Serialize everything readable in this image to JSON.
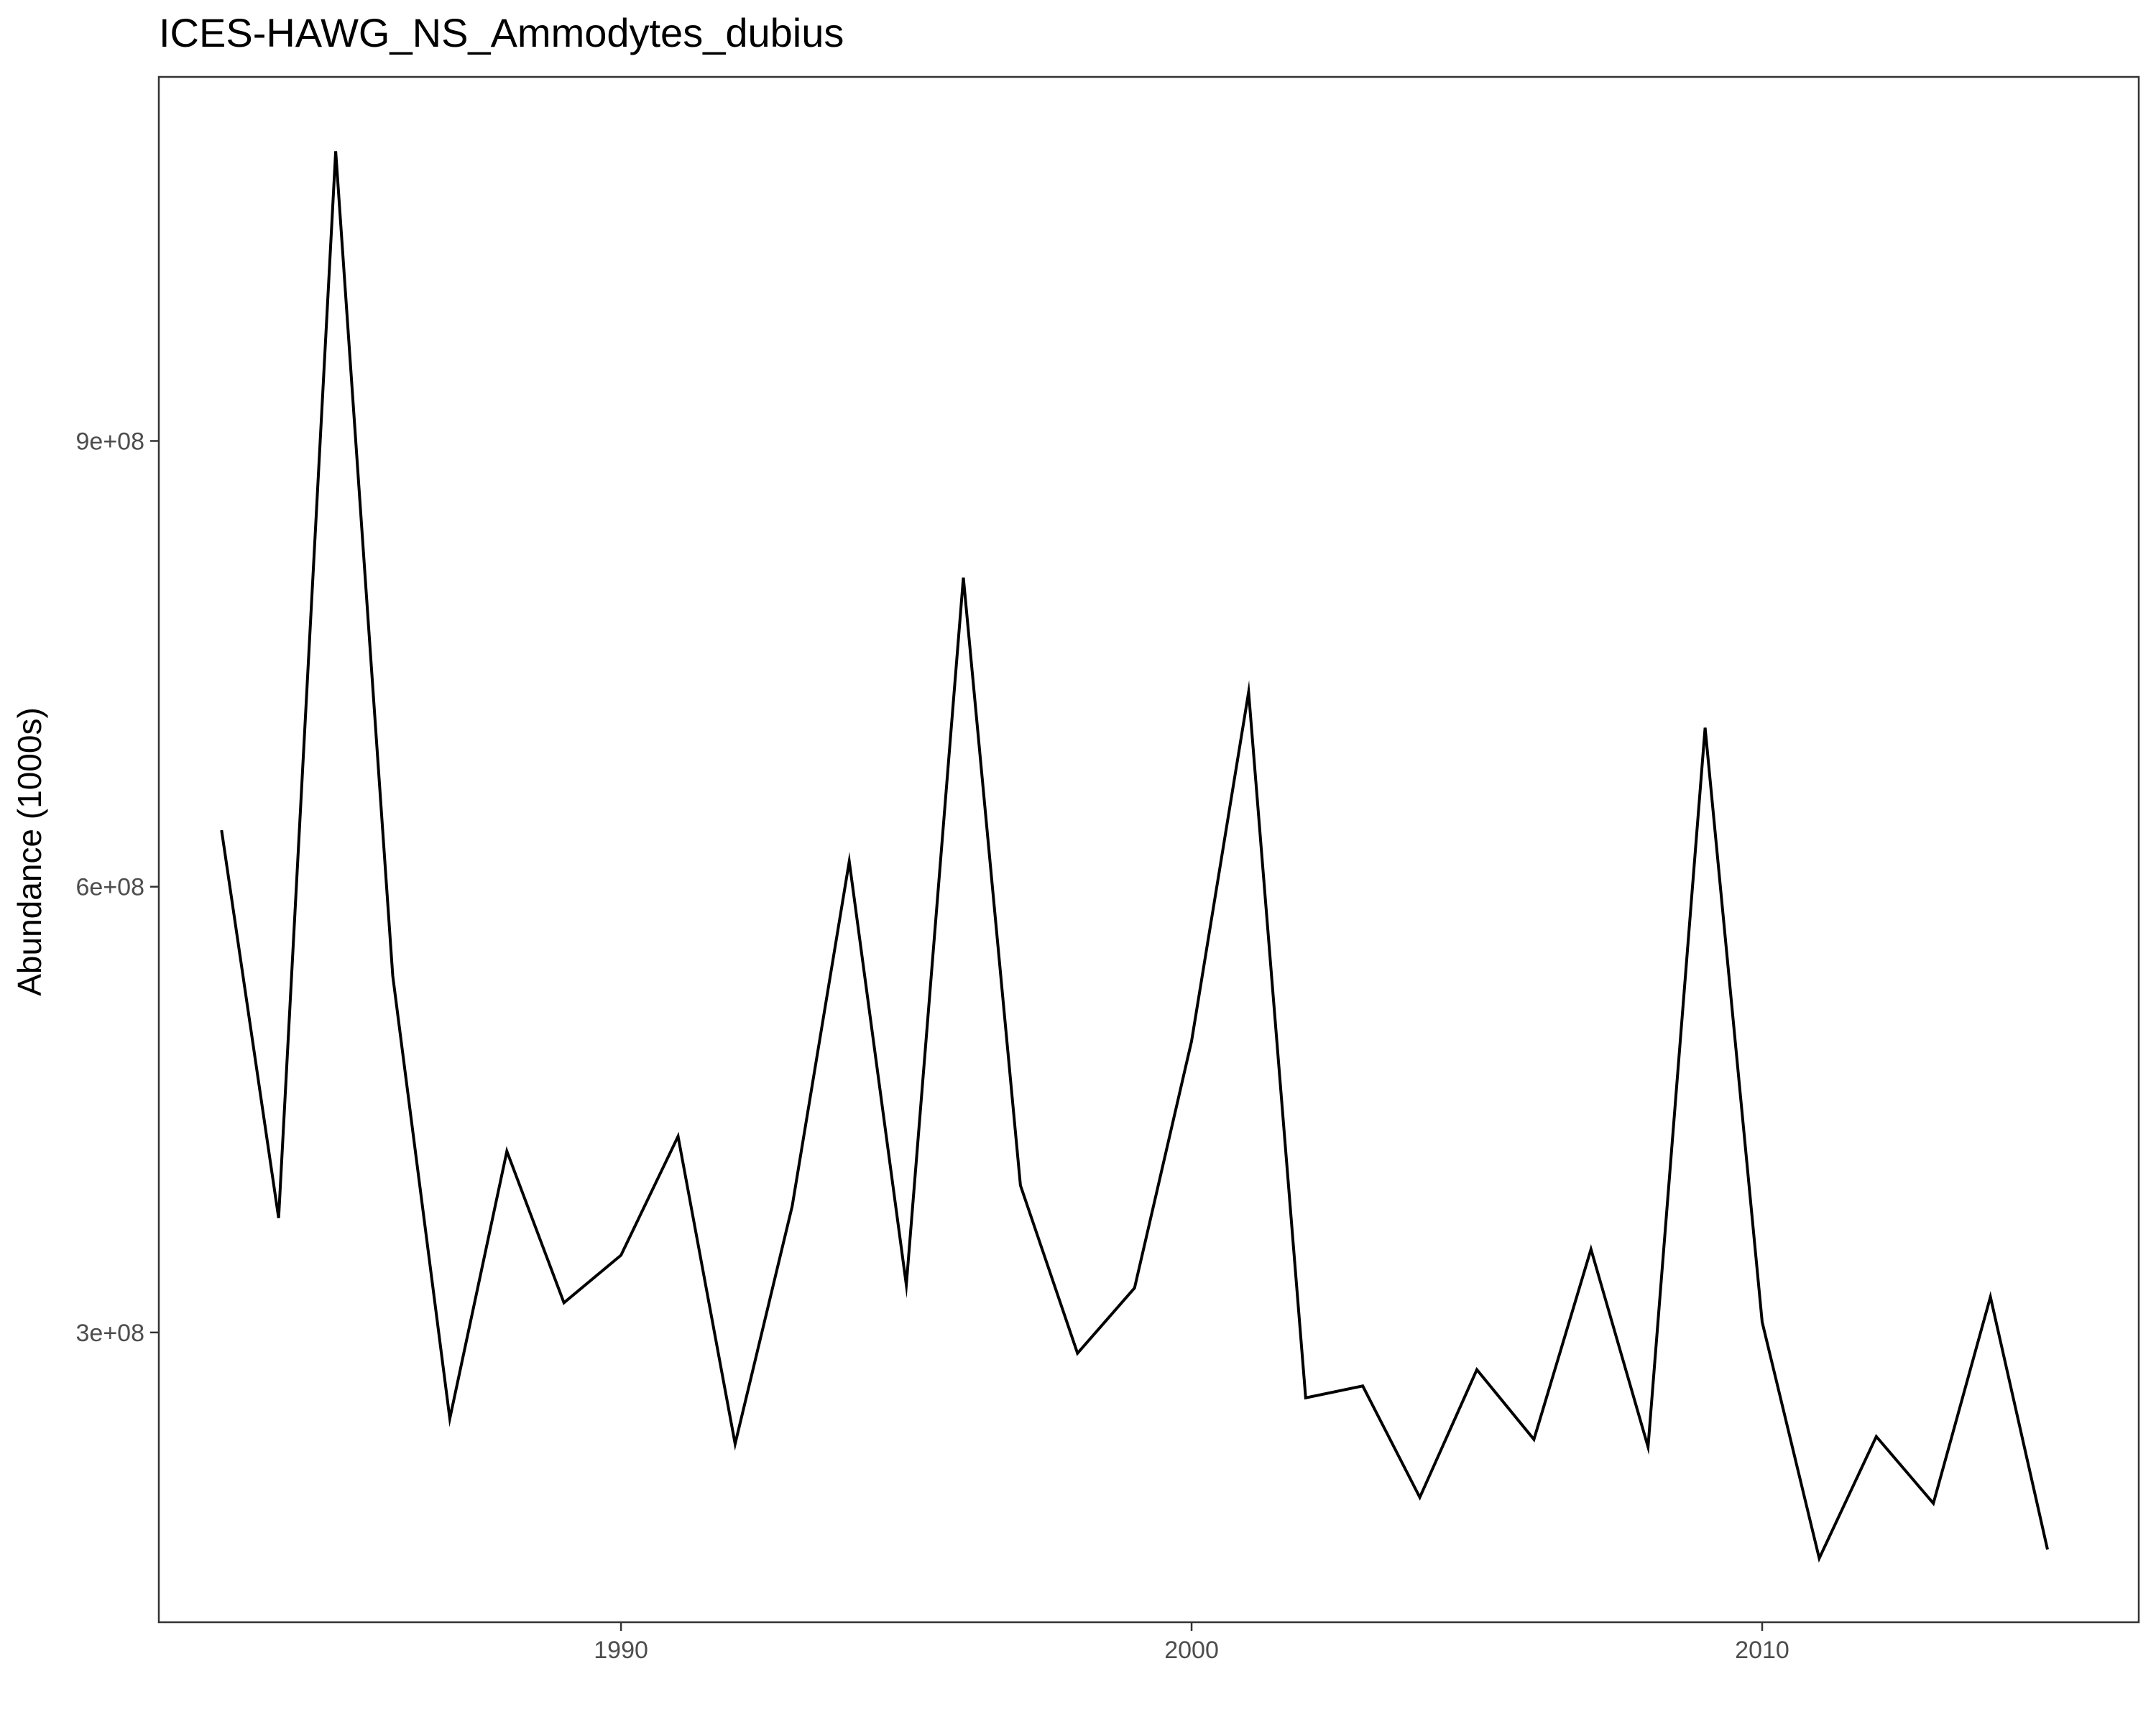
{
  "chart_data": {
    "type": "line",
    "title": "ICES-HAWG_NS_Ammodytes_dubius",
    "xlabel": "",
    "ylabel": "Abundance (1000s)",
    "xlim": [
      1981.9,
      2016.6
    ],
    "ylim": [
      105000000,
      1145000000
    ],
    "x_ticks": [
      1990,
      2000,
      2010
    ],
    "x_tick_labels": [
      "1990",
      "2000",
      "2010"
    ],
    "y_ticks": [
      300000000,
      600000000,
      900000000
    ],
    "y_tick_labels": [
      "3e+08",
      "6e+08",
      "9e+08"
    ],
    "grid": false,
    "legend": "none",
    "series": [
      {
        "color": "#000000",
        "x": [
          1983,
          1984,
          1985,
          1986,
          1987,
          1988,
          1989,
          1990,
          1991,
          1992,
          1993,
          1994,
          1995,
          1996,
          1997,
          1998,
          1999,
          2000,
          2001,
          2002,
          2003,
          2004,
          2005,
          2006,
          2007,
          2008,
          2009,
          2010,
          2011,
          2012,
          2013,
          2014,
          2015
        ],
        "y": [
          638000000,
          377000000,
          1095000000,
          540000000,
          242000000,
          422000000,
          320000000,
          352000000,
          432000000,
          225000000,
          385000000,
          617000000,
          332000000,
          808000000,
          399000000,
          286000000,
          330000000,
          496000000,
          731000000,
          256000000,
          264000000,
          189000000,
          275000000,
          228000000,
          356000000,
          223000000,
          707000000,
          307000000,
          148000000,
          230000000,
          185000000,
          324000000,
          154000000
        ]
      }
    ]
  }
}
